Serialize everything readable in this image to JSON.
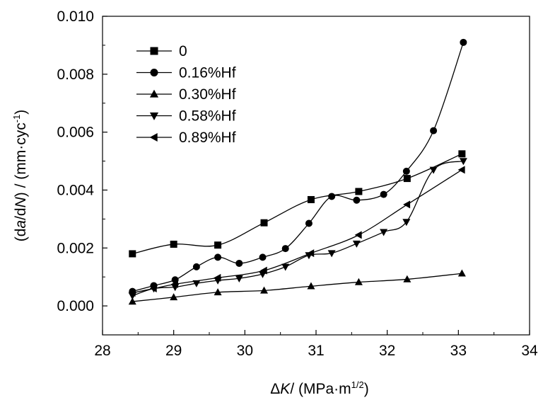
{
  "chart_data": {
    "type": "line",
    "title": "",
    "xlabel": {
      "delta": "Δ",
      "var": "K",
      "sep": "/ ",
      "unit": "(MPa·m",
      "sup": "1/2",
      "close": ")"
    },
    "ylabel": {
      "open": "(d",
      "a": "a",
      "mid": "/d",
      "n": "N",
      "after": ") / (mm·cyc",
      "sup": "-1",
      "close": ")"
    },
    "xlim": [
      28,
      34
    ],
    "ylim": [
      -0.001,
      0.01
    ],
    "xticks": [
      "28",
      "29",
      "30",
      "31",
      "32",
      "33",
      "34"
    ],
    "yticks": [
      "0.000",
      "0.002",
      "0.004",
      "0.006",
      "0.008",
      "0.010"
    ],
    "legend_position": "top-left",
    "series": [
      {
        "name": "0",
        "marker": "square",
        "x": [
          28.42,
          29.0,
          29.62,
          30.27,
          30.93,
          31.6,
          32.28,
          33.05
        ],
        "y": [
          0.0018,
          0.00213,
          0.0021,
          0.00287,
          0.00367,
          0.00395,
          0.0044,
          0.00525
        ]
      },
      {
        "name": "0.16%Hf",
        "marker": "circle",
        "x": [
          28.42,
          28.72,
          29.02,
          29.32,
          29.62,
          29.92,
          30.25,
          30.57,
          30.9,
          31.22,
          31.57,
          31.95,
          32.27,
          32.65,
          33.07
        ],
        "y": [
          0.0005,
          0.0007,
          0.0009,
          0.00135,
          0.00168,
          0.00147,
          0.00168,
          0.00198,
          0.00285,
          0.00378,
          0.00365,
          0.00385,
          0.00465,
          0.00605,
          0.0091
        ]
      },
      {
        "name": "0.30%Hf",
        "marker": "triangle-up",
        "x": [
          28.42,
          29.0,
          29.62,
          30.27,
          30.93,
          31.6,
          32.28,
          33.05
        ],
        "y": [
          0.00015,
          0.0003,
          0.00047,
          0.00053,
          0.00068,
          0.00082,
          0.00092,
          0.00112
        ]
      },
      {
        "name": "0.58%Hf",
        "marker": "triangle-down",
        "x": [
          28.42,
          28.72,
          29.02,
          29.32,
          29.62,
          29.92,
          30.25,
          30.57,
          30.9,
          31.22,
          31.57,
          31.95,
          32.27,
          32.65,
          33.07
        ],
        "y": [
          0.00035,
          0.0006,
          0.00065,
          0.00078,
          0.00088,
          0.00095,
          0.0011,
          0.00135,
          0.00175,
          0.00182,
          0.00215,
          0.00255,
          0.0029,
          0.0047,
          0.005
        ]
      },
      {
        "name": "0.89%Hf",
        "marker": "triangle-left",
        "x": [
          28.42,
          28.72,
          29.02,
          29.62,
          30.27,
          30.93,
          31.6,
          32.28,
          33.05
        ],
        "y": [
          0.00045,
          0.0006,
          0.00075,
          0.00097,
          0.00122,
          0.00182,
          0.00245,
          0.0035,
          0.0047
        ]
      }
    ]
  }
}
